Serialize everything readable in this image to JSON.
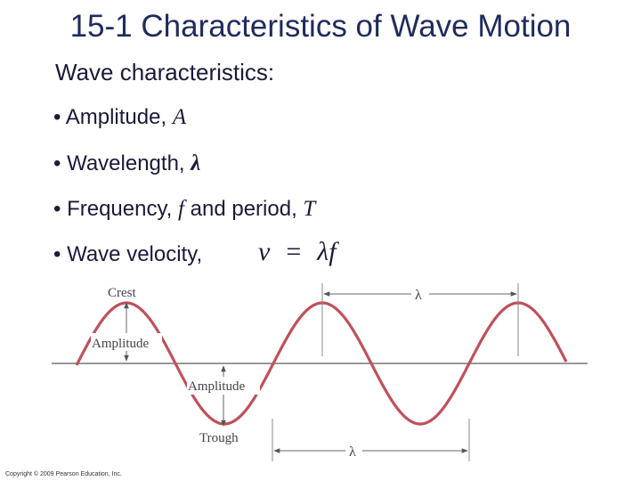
{
  "title": "15-1 Characteristics of Wave Motion",
  "subtitle": "Wave characteristics:",
  "bullets": [
    {
      "text": "• Amplitude, ",
      "symbol": "A"
    },
    {
      "text": "• Wavelength, ",
      "symbol": "λ"
    },
    {
      "text": "• Frequency, ",
      "symbol": "f",
      "text2": " and period, ",
      "symbol2": "T"
    },
    {
      "text": "• Wave velocity,"
    }
  ],
  "equation": {
    "lhs": "v",
    "op": "=",
    "rhs": "λf"
  },
  "diagram": {
    "crest": "Crest",
    "amplitude_top": "Amplitude",
    "amplitude_bottom": "Amplitude",
    "trough": "Trough",
    "lambda_top": "λ",
    "lambda_bottom": "λ",
    "wave_color": "#c0505a"
  },
  "copyright": "Copyright © 2009 Pearson Education, Inc."
}
